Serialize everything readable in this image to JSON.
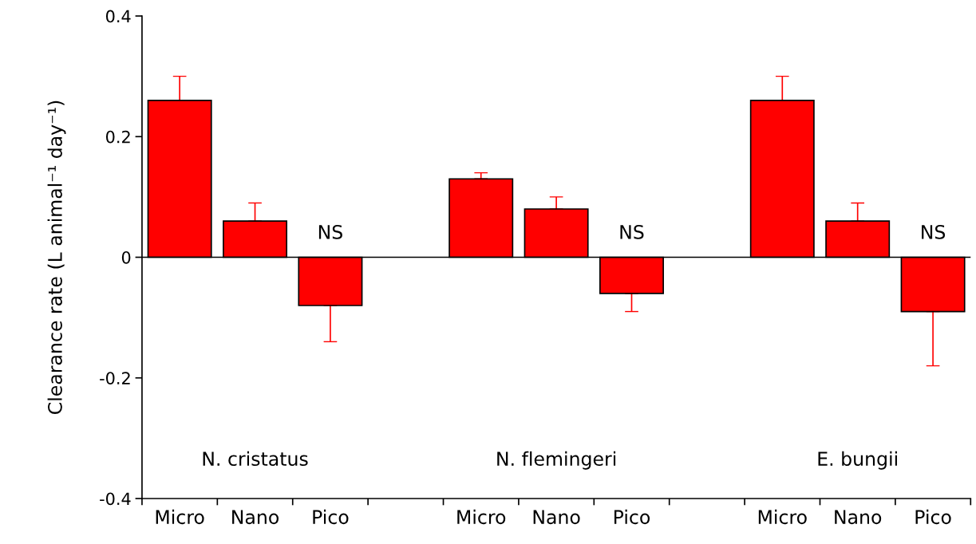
{
  "chart_data": {
    "type": "bar",
    "ylabel": "Clearance rate (L animal⁻¹ day⁻¹)",
    "categories": [
      "Micro",
      "Nano",
      "Pico",
      null,
      "Micro",
      "Nano",
      "Pico",
      null,
      "Micro",
      "Nano",
      "Pico"
    ],
    "values": [
      0.26,
      0.06,
      -0.08,
      null,
      0.13,
      0.08,
      -0.06,
      null,
      0.26,
      0.06,
      -0.09
    ],
    "errors": [
      [
        0.26,
        0.3
      ],
      [
        0.06,
        0.09
      ],
      [
        -0.14,
        -0.08
      ],
      null,
      [
        0.13,
        0.14
      ],
      [
        0.08,
        0.1
      ],
      [
        -0.09,
        -0.06
      ],
      null,
      [
        0.26,
        0.3
      ],
      [
        0.06,
        0.09
      ],
      [
        -0.18,
        -0.09
      ]
    ],
    "color": "#ff0000",
    "ylim": [
      -0.4,
      0.4
    ],
    "yticks": [
      {
        "value": -0.4,
        "label": "-0.4"
      },
      {
        "value": -0.2,
        "label": "-0.2"
      },
      0,
      0.2,
      0.4
    ],
    "ref_lines": [
      {
        "axis": "y",
        "value": 0,
        "color": "#000000"
      }
    ],
    "annotations": [
      "NS",
      "NS",
      "NS",
      "N. cristatus",
      "N. flemingeri",
      "E. bungii"
    ],
    "grid": false,
    "legend": false
  }
}
